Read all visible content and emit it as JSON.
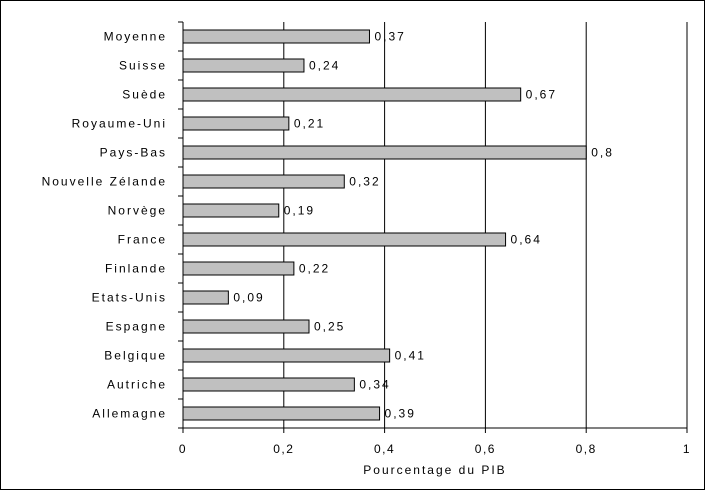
{
  "chart_data": {
    "type": "bar",
    "orientation": "horizontal",
    "categories": [
      "Moyenne",
      "Suisse",
      "Suède",
      "Royaume-Uni",
      "Pays-Bas",
      "Nouvelle Zélande",
      "Norvège",
      "France",
      "Finlande",
      "Etats-Unis",
      "Espagne",
      "Belgique",
      "Autriche",
      "Allemagne"
    ],
    "values": [
      0.37,
      0.24,
      0.67,
      0.21,
      0.8,
      0.32,
      0.19,
      0.64,
      0.22,
      0.09,
      0.25,
      0.41,
      0.34,
      0.39
    ],
    "value_labels": [
      "0,37",
      "0,24",
      "0,67",
      "0,21",
      "0,8",
      "0,32",
      "0,19",
      "0,64",
      "0,22",
      "0,09",
      "0,25",
      "0,41",
      "0,34",
      "0,39"
    ],
    "xlim": [
      0,
      1
    ],
    "xticks": [
      0,
      0.2,
      0.4,
      0.6,
      0.8,
      1
    ],
    "xtick_labels": [
      "0",
      "0,2",
      "0,4",
      "0,6",
      "0,8",
      "1"
    ],
    "xlabel": "Pourcentage du PIB",
    "grid": "vertical",
    "bar_color": "#c0c0c0",
    "title": ""
  }
}
